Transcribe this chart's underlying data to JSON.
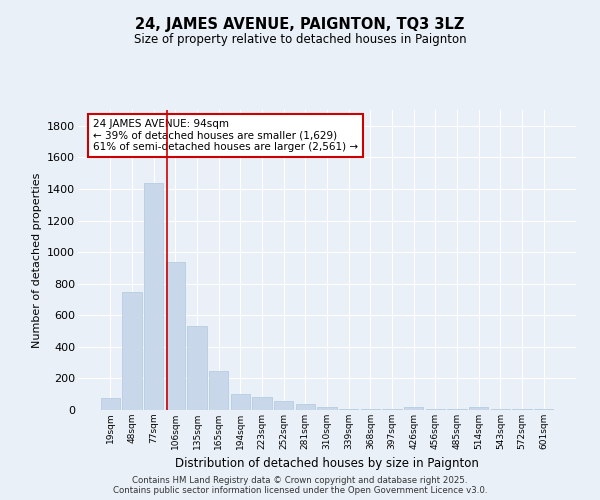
{
  "title": "24, JAMES AVENUE, PAIGNTON, TQ3 3LZ",
  "subtitle": "Size of property relative to detached houses in Paignton",
  "xlabel": "Distribution of detached houses by size in Paignton",
  "ylabel": "Number of detached properties",
  "categories": [
    "19sqm",
    "48sqm",
    "77sqm",
    "106sqm",
    "135sqm",
    "165sqm",
    "194sqm",
    "223sqm",
    "252sqm",
    "281sqm",
    "310sqm",
    "339sqm",
    "368sqm",
    "397sqm",
    "426sqm",
    "456sqm",
    "485sqm",
    "514sqm",
    "543sqm",
    "572sqm",
    "601sqm"
  ],
  "values": [
    75,
    750,
    1440,
    940,
    530,
    250,
    100,
    80,
    55,
    35,
    18,
    8,
    5,
    4,
    18,
    8,
    5,
    20,
    5,
    5,
    5
  ],
  "bar_color": "#c8d8ea",
  "bar_edge_color": "#b0c8de",
  "line_x_index": 2.62,
  "annotation_text": "24 JAMES AVENUE: 94sqm\n← 39% of detached houses are smaller (1,629)\n61% of semi-detached houses are larger (2,561) →",
  "annotation_box_color": "white",
  "annotation_box_edge_color": "#cc0000",
  "line_color": "#cc0000",
  "background_color": "#eaf0f8",
  "grid_color": "white",
  "ylim": [
    0,
    1900
  ],
  "yticks": [
    0,
    200,
    400,
    600,
    800,
    1000,
    1200,
    1400,
    1600,
    1800
  ],
  "footer_line1": "Contains HM Land Registry data © Crown copyright and database right 2025.",
  "footer_line2": "Contains public sector information licensed under the Open Government Licence v3.0."
}
